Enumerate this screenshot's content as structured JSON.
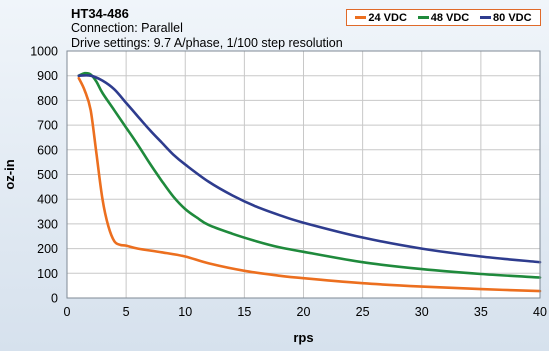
{
  "header": {
    "title": "HT34-486",
    "connection": "Connection: Parallel",
    "drive": "Drive settings: 9.7 A/phase, 1/100 step resolution"
  },
  "chart_data": {
    "type": "line",
    "title": "HT34-486",
    "xlabel": "rps",
    "ylabel": "oz-in",
    "xlim": [
      0,
      40
    ],
    "ylim": [
      0,
      1000
    ],
    "xticks": [
      0,
      5,
      10,
      15,
      20,
      25,
      30,
      35,
      40
    ],
    "yticks": [
      0,
      100,
      200,
      300,
      400,
      500,
      600,
      700,
      800,
      900,
      1000
    ],
    "grid": true,
    "legend_position": "top-right",
    "series": [
      {
        "name": "24 VDC",
        "color": "#ec6f1f",
        "x": [
          1.0,
          1.5,
          2.0,
          2.5,
          3.0,
          3.5,
          4.0,
          4.5,
          5,
          6,
          8,
          10,
          12,
          15,
          18,
          20,
          25,
          30,
          35,
          40
        ],
        "y": [
          890,
          840,
          760,
          580,
          400,
          290,
          230,
          215,
          212,
          200,
          185,
          168,
          140,
          110,
          90,
          80,
          60,
          46,
          36,
          28
        ]
      },
      {
        "name": "48 VDC",
        "color": "#1f8a3c",
        "x": [
          1.0,
          1.5,
          2.0,
          2.5,
          3.0,
          4.0,
          5.0,
          6.0,
          7.0,
          8.0,
          9.0,
          10.0,
          11.0,
          12.0,
          14.0,
          16.0,
          18.0,
          20.0,
          25.0,
          30.0,
          35.0,
          40.0
        ],
        "y": [
          900,
          910,
          905,
          875,
          830,
          760,
          690,
          620,
          545,
          475,
          410,
          360,
          325,
          295,
          260,
          230,
          205,
          187,
          145,
          117,
          97,
          83
        ]
      },
      {
        "name": "80 VDC",
        "color": "#2e3c8e",
        "x": [
          1.0,
          2.0,
          3.0,
          4.0,
          5.0,
          6.0,
          7.0,
          8.0,
          9.0,
          10.0,
          12.0,
          14.0,
          16.0,
          18.0,
          20.0,
          25.0,
          30.0,
          35.0,
          40.0
        ],
        "y": [
          900,
          900,
          880,
          845,
          790,
          735,
          680,
          630,
          580,
          540,
          470,
          415,
          370,
          335,
          305,
          245,
          200,
          168,
          145
        ]
      }
    ]
  }
}
